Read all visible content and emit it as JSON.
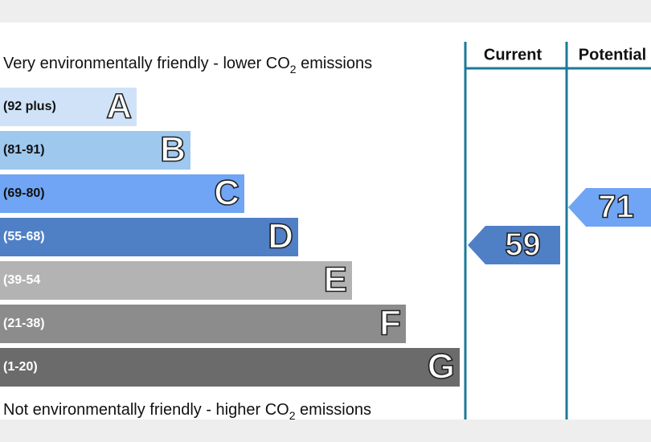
{
  "top_label": [
    "Very environmentally friendly - lower CO",
    "2",
    " emissions"
  ],
  "bottom_label": [
    "Not environmentally friendly - higher CO",
    "2",
    " emissions"
  ],
  "bands": [
    {
      "range": "(92 plus)",
      "letter": "A",
      "color": "#cfe2f7",
      "text_color": "#111111"
    },
    {
      "range": "(81-91)",
      "letter": "B",
      "color": "#9ec8ee",
      "text_color": "#111111"
    },
    {
      "range": "(69-80)",
      "letter": "C",
      "color": "#6fa5f4",
      "text_color": "#111111"
    },
    {
      "range": "(55-68)",
      "letter": "D",
      "color": "#4f80c6",
      "text_color": "#ffffff"
    },
    {
      "range": "(39-54",
      "letter": "E",
      "color": "#b3b3b3",
      "text_color": "#ffffff"
    },
    {
      "range": "(21-38)",
      "letter": "F",
      "color": "#8c8c8c",
      "text_color": "#ffffff"
    },
    {
      "range": "(1-20)",
      "letter": "G",
      "color": "#6b6b6b",
      "text_color": "#ffffff"
    }
  ],
  "columns": [
    {
      "header": "Current",
      "value": 59,
      "color": "#4f80c6"
    },
    {
      "header": "Potential",
      "value": 71,
      "color": "#6fa5f4"
    }
  ]
}
